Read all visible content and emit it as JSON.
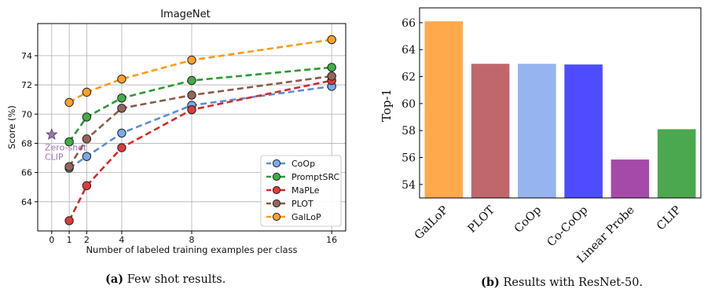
{
  "chart_data": [
    {
      "type": "line",
      "title": "ImageNet",
      "xlabel": "Number of labeled training examples per class",
      "ylabel": "Score (%)",
      "x_ticks": [
        0,
        1,
        2,
        4,
        8,
        16
      ],
      "x_tick_labels": [
        "0",
        "1",
        "2",
        "4",
        "8",
        "16"
      ],
      "y_ticks": [
        64,
        66,
        68,
        70,
        72,
        74
      ],
      "y_tick_labels": [
        "64",
        "66",
        "68",
        "70",
        "72",
        "74"
      ],
      "xlim": [
        -0.8,
        16.8
      ],
      "ylim": [
        62.0,
        76.2
      ],
      "grid": true,
      "legend_position": "bottom-right",
      "x": [
        1,
        2,
        4,
        8,
        16
      ],
      "series": [
        {
          "name": "CoOp",
          "color": "#5b8fd9",
          "fill": "#7aaae8",
          "values": [
            66.3,
            67.1,
            68.7,
            70.6,
            71.9
          ]
        },
        {
          "name": "PromptSRC",
          "color": "#2a9a32",
          "fill": "#3fae45",
          "values": [
            68.1,
            69.8,
            71.1,
            72.3,
            73.2
          ]
        },
        {
          "name": "MaPLe",
          "color": "#d42a2a",
          "fill": "#df3b3b",
          "values": [
            62.7,
            65.1,
            67.7,
            70.3,
            72.3
          ]
        },
        {
          "name": "PLOT",
          "color": "#8b5a4b",
          "fill": "#96655a",
          "values": [
            66.4,
            68.3,
            70.4,
            71.3,
            72.6
          ]
        },
        {
          "name": "GalLoP",
          "color": "#ff9a14",
          "fill": "#ffa12a",
          "values": [
            70.8,
            71.5,
            72.4,
            73.7,
            75.1
          ]
        }
      ],
      "zeroshot": {
        "x": 0,
        "y": 68.6,
        "label_line1": "Zero-shot",
        "label_line2": "CLIP",
        "color": "#a070c0"
      }
    },
    {
      "type": "bar",
      "xlabel": "",
      "ylabel": "Top-1",
      "categories": [
        "GalLoP",
        "PLOT",
        "CoOp",
        "Co-CoOp",
        "Linear Probe",
        "CLIP"
      ],
      "values": [
        66.1,
        62.95,
        62.95,
        62.9,
        55.85,
        58.1
      ],
      "colors": [
        "#ffa94d",
        "#c0676b",
        "#96b4ef",
        "#4d4dff",
        "#a64aa9",
        "#4ba84e"
      ],
      "y_ticks": [
        54,
        56,
        58,
        60,
        62,
        64,
        66
      ],
      "y_tick_labels": [
        "54",
        "56",
        "58",
        "60",
        "62",
        "64",
        "66"
      ],
      "ylim": [
        53.0,
        67.1
      ],
      "grid": false
    }
  ],
  "captions": {
    "a_label": "(a)",
    "a_text": " Few shot results.",
    "b_label": "(b)",
    "b_text": " Results with ResNet-50."
  }
}
